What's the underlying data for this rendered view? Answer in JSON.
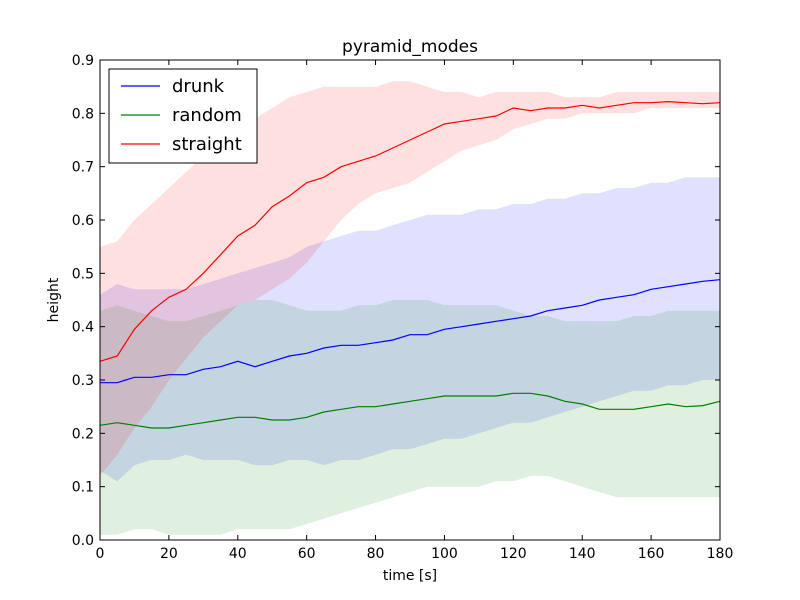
{
  "chart_data": {
    "type": "line",
    "title": "pyramid_modes",
    "xlabel": "time [s]",
    "ylabel": "height",
    "xlim": [
      0,
      180
    ],
    "ylim": [
      0,
      0.9
    ],
    "xticks": [
      "0",
      "20",
      "40",
      "60",
      "80",
      "100",
      "120",
      "140",
      "160",
      "180"
    ],
    "yticks": [
      "0.0",
      "0.1",
      "0.2",
      "0.3",
      "0.4",
      "0.5",
      "0.6",
      "0.7",
      "0.8",
      "0.9"
    ],
    "grid": false,
    "legend_position": "top-left",
    "x": [
      0,
      5,
      10,
      15,
      20,
      25,
      30,
      35,
      40,
      45,
      50,
      55,
      60,
      65,
      70,
      75,
      80,
      85,
      90,
      95,
      100,
      105,
      110,
      115,
      120,
      125,
      130,
      135,
      140,
      145,
      150,
      155,
      160,
      165,
      170,
      175,
      180
    ],
    "series": [
      {
        "name": "drunk",
        "color": "#0000ff",
        "values": [
          0.295,
          0.295,
          0.305,
          0.305,
          0.31,
          0.31,
          0.32,
          0.325,
          0.335,
          0.325,
          0.335,
          0.345,
          0.35,
          0.36,
          0.365,
          0.365,
          0.37,
          0.375,
          0.385,
          0.385,
          0.395,
          0.4,
          0.405,
          0.41,
          0.415,
          0.42,
          0.43,
          0.435,
          0.44,
          0.45,
          0.455,
          0.46,
          0.47,
          0.475,
          0.48,
          0.485,
          0.488
        ],
        "lower": [
          0.13,
          0.11,
          0.14,
          0.15,
          0.15,
          0.16,
          0.15,
          0.15,
          0.15,
          0.14,
          0.14,
          0.15,
          0.15,
          0.14,
          0.15,
          0.15,
          0.16,
          0.17,
          0.17,
          0.18,
          0.19,
          0.19,
          0.2,
          0.21,
          0.22,
          0.22,
          0.23,
          0.24,
          0.25,
          0.26,
          0.27,
          0.28,
          0.28,
          0.29,
          0.29,
          0.3,
          0.3
        ],
        "upper": [
          0.46,
          0.48,
          0.47,
          0.47,
          0.47,
          0.47,
          0.48,
          0.49,
          0.5,
          0.51,
          0.52,
          0.53,
          0.55,
          0.56,
          0.57,
          0.58,
          0.58,
          0.59,
          0.6,
          0.61,
          0.61,
          0.61,
          0.62,
          0.62,
          0.63,
          0.63,
          0.64,
          0.64,
          0.65,
          0.65,
          0.66,
          0.66,
          0.67,
          0.67,
          0.68,
          0.68,
          0.68
        ]
      },
      {
        "name": "random",
        "color": "#008000",
        "values": [
          0.215,
          0.22,
          0.215,
          0.21,
          0.21,
          0.215,
          0.22,
          0.225,
          0.23,
          0.23,
          0.225,
          0.225,
          0.23,
          0.24,
          0.245,
          0.25,
          0.25,
          0.255,
          0.26,
          0.265,
          0.27,
          0.27,
          0.27,
          0.27,
          0.275,
          0.275,
          0.27,
          0.26,
          0.255,
          0.245,
          0.245,
          0.245,
          0.25,
          0.255,
          0.25,
          0.252,
          0.26
        ],
        "lower": [
          0.01,
          0.01,
          0.02,
          0.02,
          0.01,
          0.01,
          0.01,
          0.01,
          0.02,
          0.02,
          0.02,
          0.02,
          0.03,
          0.04,
          0.05,
          0.06,
          0.07,
          0.08,
          0.09,
          0.1,
          0.1,
          0.1,
          0.1,
          0.11,
          0.11,
          0.12,
          0.12,
          0.11,
          0.1,
          0.09,
          0.08,
          0.08,
          0.08,
          0.08,
          0.08,
          0.08,
          0.08
        ],
        "upper": [
          0.43,
          0.44,
          0.43,
          0.42,
          0.41,
          0.41,
          0.42,
          0.43,
          0.44,
          0.45,
          0.45,
          0.44,
          0.43,
          0.43,
          0.43,
          0.44,
          0.44,
          0.45,
          0.45,
          0.45,
          0.44,
          0.44,
          0.44,
          0.44,
          0.43,
          0.42,
          0.42,
          0.41,
          0.41,
          0.41,
          0.41,
          0.42,
          0.42,
          0.43,
          0.43,
          0.43,
          0.43
        ]
      },
      {
        "name": "straight",
        "color": "#ff0000",
        "values": [
          0.335,
          0.345,
          0.395,
          0.43,
          0.455,
          0.47,
          0.5,
          0.535,
          0.57,
          0.59,
          0.625,
          0.645,
          0.67,
          0.68,
          0.7,
          0.71,
          0.72,
          0.735,
          0.75,
          0.765,
          0.78,
          0.785,
          0.79,
          0.795,
          0.81,
          0.805,
          0.81,
          0.81,
          0.815,
          0.81,
          0.815,
          0.82,
          0.82,
          0.822,
          0.82,
          0.818,
          0.82
        ],
        "lower": [
          0.12,
          0.16,
          0.21,
          0.25,
          0.3,
          0.34,
          0.38,
          0.41,
          0.44,
          0.45,
          0.47,
          0.49,
          0.52,
          0.56,
          0.6,
          0.63,
          0.65,
          0.66,
          0.67,
          0.69,
          0.71,
          0.73,
          0.74,
          0.75,
          0.77,
          0.78,
          0.79,
          0.79,
          0.8,
          0.8,
          0.8,
          0.8,
          0.81,
          0.81,
          0.81,
          0.81,
          0.81
        ],
        "upper": [
          0.55,
          0.56,
          0.6,
          0.63,
          0.66,
          0.69,
          0.72,
          0.75,
          0.77,
          0.79,
          0.81,
          0.83,
          0.84,
          0.85,
          0.85,
          0.85,
          0.85,
          0.86,
          0.86,
          0.85,
          0.84,
          0.84,
          0.83,
          0.84,
          0.84,
          0.84,
          0.84,
          0.83,
          0.83,
          0.83,
          0.84,
          0.84,
          0.84,
          0.84,
          0.84,
          0.84,
          0.84
        ]
      }
    ]
  }
}
